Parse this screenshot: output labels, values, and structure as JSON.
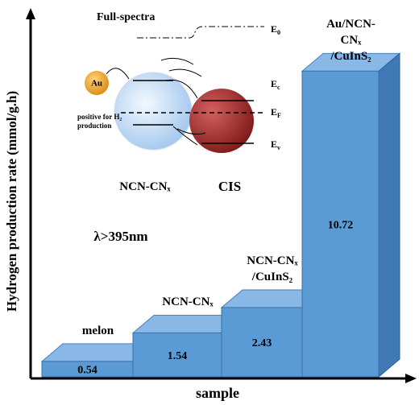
{
  "chart_data": {
    "type": "bar3d",
    "y_label": "Hydrogen production rate (mmol/g.h)",
    "x_label": "sample",
    "categories": [
      "melon",
      "NCN-CNₓ",
      "NCN-CNₓ\n/CuInS₂",
      "Au/NCN-CNₓ\n/CuInS₂"
    ],
    "values": [
      0.54,
      1.54,
      2.43,
      10.72
    ],
    "color": "#5b9bd5",
    "ylim": [
      0,
      12
    ],
    "inset": {
      "title": "Full-spectra",
      "levels": [
        {
          "base": "E",
          "sub": "0"
        },
        {
          "base": "E",
          "sub": "c"
        },
        {
          "base": "E",
          "sub": "F"
        },
        {
          "base": "E",
          "sub": "v"
        }
      ],
      "au": "Au",
      "note": "positive for H₂\nproduction",
      "left_particle": "NCN-CNₓ",
      "right_particle": "CIS",
      "wavelength": "λ>395nm"
    }
  }
}
